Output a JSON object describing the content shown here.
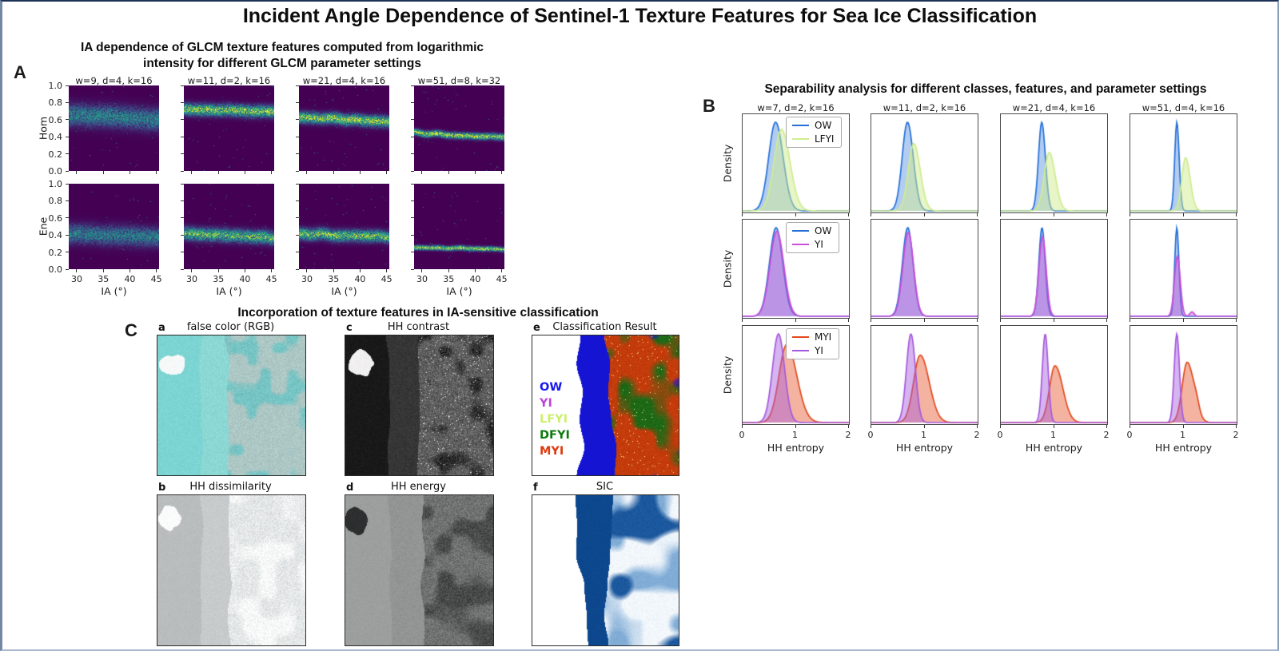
{
  "title": "Incident Angle Dependence of Sentinel-1 Texture Features for Sea Ice Classification",
  "panel_a": {
    "label": "A",
    "title": "IA dependence of GLCM texture features computed from logarithmic\nintensity for different GLCM parameter settings",
    "col_titles": [
      "w=9, d=4, k=16",
      "w=11, d=2, k=16",
      "w=21, d=4, k=16",
      "w=51, d=8, k=32"
    ],
    "row_labels": [
      "Hom",
      "Ene"
    ],
    "xlabel": "IA (°)",
    "xticks": [
      "30",
      "35",
      "40",
      "45"
    ],
    "yticks": [
      "1.0",
      "0.8",
      "0.6",
      "0.4",
      "0.2",
      "0.0"
    ]
  },
  "panel_b": {
    "label": "B",
    "title": "Separability analysis for different classes, features, and parameter settings",
    "col_titles": [
      "w=7, d=2, k=16",
      "w=11, d=2, k=16",
      "w=21, d=4, k=16",
      "w=51, d=4, k=16"
    ],
    "ylabel": "Density",
    "xlabel": "HH entropy",
    "xticks": [
      "0",
      "1",
      "2"
    ]
  },
  "panel_c": {
    "label": "C",
    "title": "Incorporation of texture features in IA-sensitive classification",
    "legend_e": [
      {
        "label": "OW",
        "color": "#1a1aee"
      },
      {
        "label": "YI",
        "color": "#bb44dd"
      },
      {
        "label": "LFYI",
        "color": "#cdef6e"
      },
      {
        "label": "DFYI",
        "color": "#0d7a0d"
      },
      {
        "label": "MYI",
        "color": "#e03a10"
      }
    ]
  },
  "chart_data": {
    "panel_a": {
      "type": "heatmap",
      "title": "IA dependence of GLCM texture features computed from logarithmic intensity for different GLCM parameter settings",
      "columns": [
        "w=9, d=4, k=16",
        "w=11, d=2, k=16",
        "w=21, d=4, k=16",
        "w=51, d=8, k=32"
      ],
      "rows": [
        "Hom",
        "Ene"
      ],
      "xlabel": "IA (°)",
      "xlim": [
        28.5,
        45.5
      ],
      "xticks": [
        30,
        35,
        40,
        45
      ],
      "ylim": [
        0,
        1
      ],
      "yticks": [
        1.0,
        0.8,
        0.6,
        0.4,
        0.2,
        0.0
      ],
      "colormap": "viridis",
      "cells": [
        {
          "row": "Hom",
          "col": "w=9, d=4, k=16",
          "band_center_start": 0.66,
          "band_center_end": 0.61,
          "band_sigma": 0.085,
          "peak": 0.5,
          "wig": 0.012
        },
        {
          "row": "Hom",
          "col": "w=11, d=2, k=16",
          "band_center_start": 0.73,
          "band_center_end": 0.7,
          "band_sigma": 0.045,
          "peak": 0.92,
          "wig": 0.012
        },
        {
          "row": "Hom",
          "col": "w=21, d=4, k=16",
          "band_center_start": 0.64,
          "band_center_end": 0.58,
          "band_sigma": 0.042,
          "peak": 0.95,
          "wig": 0.015
        },
        {
          "row": "Hom",
          "col": "w=51, d=8, k=32",
          "band_center_start": 0.46,
          "band_center_end": 0.4,
          "band_sigma": 0.024,
          "peak": 1.0,
          "wig": 0.022
        },
        {
          "row": "Ene",
          "col": "w=9, d=4, k=16",
          "band_center_start": 0.42,
          "band_center_end": 0.38,
          "band_sigma": 0.075,
          "peak": 0.48,
          "wig": 0.012
        },
        {
          "row": "Ene",
          "col": "w=11, d=2, k=16",
          "band_center_start": 0.42,
          "band_center_end": 0.37,
          "band_sigma": 0.05,
          "peak": 0.8,
          "wig": 0.012
        },
        {
          "row": "Ene",
          "col": "w=21, d=4, k=16",
          "band_center_start": 0.42,
          "band_center_end": 0.38,
          "band_sigma": 0.045,
          "peak": 0.85,
          "wig": 0.015
        },
        {
          "row": "Ene",
          "col": "w=51, d=8, k=32",
          "band_center_start": 0.265,
          "band_center_end": 0.235,
          "band_sigma": 0.018,
          "peak": 1.0,
          "wig": 0.022
        }
      ]
    },
    "panel_b": {
      "type": "density",
      "title": "Separability analysis for different classes, features, and parameter settings",
      "columns": [
        "w=7, d=2, k=16",
        "w=11, d=2, k=16",
        "w=21, d=4, k=16",
        "w=51, d=4, k=16"
      ],
      "xlabel": "HH entropy",
      "xlim": [
        0,
        2
      ],
      "xticks": [
        0,
        1,
        2
      ],
      "ylabel": "Density",
      "rows": [
        {
          "classes": [
            "OW",
            "LFYI"
          ],
          "colors": [
            "#2470d8",
            "#cfec90"
          ],
          "alphas": [
            0.35,
            0.5
          ]
        },
        {
          "classes": [
            "OW",
            "YI"
          ],
          "colors": [
            "#2470d8",
            "#c84fd8"
          ],
          "alphas": [
            0.35,
            0.45
          ]
        },
        {
          "classes": [
            "MYI",
            "YI"
          ],
          "colors": [
            "#e2491c",
            "#a558dd"
          ],
          "alphas": [
            0.42,
            0.45
          ]
        }
      ],
      "cells": [
        {
          "row": 0,
          "col": 0,
          "curves": [
            {
              "m": 0.62,
              "s": 0.13,
              "a": 1.0,
              "skew": 1.1
            },
            {
              "m": 0.73,
              "s": 0.14,
              "a": 0.92,
              "skew": 1.15
            }
          ]
        },
        {
          "row": 0,
          "col": 1,
          "curves": [
            {
              "m": 0.68,
              "s": 0.1,
              "a": 1.0,
              "skew": 1.1
            },
            {
              "m": 0.8,
              "s": 0.105,
              "a": 0.76,
              "skew": 1.15
            }
          ]
        },
        {
          "row": 0,
          "col": 2,
          "curves": [
            {
              "m": 0.77,
              "s": 0.062,
              "a": 1.0,
              "skew": 1.1
            },
            {
              "m": 0.91,
              "s": 0.095,
              "a": 0.66,
              "skew": 1.2
            }
          ]
        },
        {
          "row": 0,
          "col": 3,
          "curves": [
            {
              "m": 0.875,
              "s": 0.04,
              "a": 1.0,
              "skew": 1.1
            },
            {
              "m": 1.04,
              "s": 0.072,
              "a": 0.6,
              "skew": 1.2
            }
          ]
        },
        {
          "row": 1,
          "col": 0,
          "curves": [
            {
              "m": 0.63,
              "s": 0.125,
              "a": 1.0
            },
            {
              "m": 0.645,
              "s": 0.13,
              "a": 0.96
            }
          ]
        },
        {
          "row": 1,
          "col": 1,
          "curves": [
            {
              "m": 0.685,
              "s": 0.1,
              "a": 1.0
            },
            {
              "m": 0.695,
              "s": 0.1,
              "a": 0.95
            }
          ]
        },
        {
          "row": 1,
          "col": 2,
          "curves": [
            {
              "m": 0.775,
              "s": 0.06,
              "a": 1.0
            },
            {
              "m": 0.785,
              "s": 0.068,
              "a": 0.9
            }
          ]
        },
        {
          "row": 1,
          "col": 3,
          "curves": [
            {
              "m": 0.875,
              "s": 0.04,
              "a": 1.0
            },
            {
              "m": 0.885,
              "s": 0.055,
              "a": 0.68,
              "bump": {
                "m": 1.16,
                "s": 0.04,
                "a": 0.05
              }
            }
          ]
        },
        {
          "row": 2,
          "col": 0,
          "curves": [
            {
              "m": 0.83,
              "s": 0.145,
              "a": 0.88,
              "skew": 1.3
            },
            {
              "m": 0.675,
              "s": 0.115,
              "a": 1.0
            }
          ]
        },
        {
          "row": 2,
          "col": 1,
          "curves": [
            {
              "m": 0.92,
              "s": 0.125,
              "a": 0.76,
              "skew": 1.35
            },
            {
              "m": 0.745,
              "s": 0.085,
              "a": 1.0
            }
          ]
        },
        {
          "row": 2,
          "col": 2,
          "curves": [
            {
              "m": 1.02,
              "s": 0.105,
              "a": 0.64,
              "skew": 1.4
            },
            {
              "m": 0.835,
              "s": 0.055,
              "a": 1.0
            }
          ]
        },
        {
          "row": 2,
          "col": 3,
          "curves": [
            {
              "m": 1.07,
              "s": 0.095,
              "a": 0.68,
              "skew": 1.35,
              "bump": {
                "m": 1.25,
                "s": 0.05,
                "a": 0.07
              }
            },
            {
              "m": 0.875,
              "s": 0.05,
              "a": 1.0
            }
          ]
        }
      ]
    },
    "panel_c": {
      "type": "image-grid",
      "title": "Incorporation of texture features in IA-sensitive classification",
      "images": [
        {
          "letter": "a",
          "title": "false color (RGB)",
          "render": {
            "seed": 11,
            "edge": 0.025,
            "bands": [
              {
                "x": 0,
                "c": [
                  125,
                  213,
                  211
                ],
                "n": 7
              },
              {
                "x": 0.295,
                "c": [
                  139,
                  216,
                  212
                ],
                "n": 9
              },
              {
                "x": 0.47,
                "c": [
                  173,
                  199,
                  197
                ],
                "n": 13,
                "mc": [
                  118,
                  196,
                  196
                ],
                "mt": 0.54,
                "ms": 11
              }
            ],
            "blob": {
              "x": 0.1,
              "y": 0.21,
              "rx": 0.085,
              "ry": 0.075,
              "c": [
                246,
                249,
                249
              ]
            }
          }
        },
        {
          "letter": "c",
          "title": "HH contrast",
          "render": {
            "seed": 23,
            "edge": 0.02,
            "bands": [
              {
                "x": 0,
                "c": [
                  25,
                  25,
                  25
                ],
                "n": 6
              },
              {
                "x": 0.29,
                "c": [
                  54,
                  54,
                  54
                ],
                "n": 10
              },
              {
                "x": 0.5,
                "c": [
                  95,
                  95,
                  95
                ],
                "n": 32,
                "mc": [
                  45,
                  45,
                  45
                ],
                "mt": 0.6,
                "ms": 9,
                "sp": 0.02,
                "sc": [
                  235,
                  235,
                  235
                ]
              }
            ],
            "blob": {
              "x": 0.1,
              "y": 0.2,
              "rx": 0.08,
              "ry": 0.09,
              "c": [
                240,
                240,
                240
              ]
            }
          }
        },
        {
          "letter": "e",
          "title": "Classification Result",
          "render": {
            "seed": 37,
            "edge": 0.05,
            "bands": [
              {
                "x": 0,
                "c": [
                  255,
                  255,
                  255
                ],
                "n": 0
              },
              {
                "x": 0.335,
                "c": [
                  20,
                  20,
                  210
                ],
                "n": 0
              },
              {
                "x": 0.53,
                "c": [
                  196,
                  60,
                  12
                ],
                "n": 9,
                "mc": [
                  30,
                  105,
                  22
                ],
                "mt": 0.56,
                "ms": 8,
                "mc2": [
                  20,
                  20,
                  210
                ],
                "mt2": 0.78,
                "ms2": 6,
                "sp": 0.012,
                "sc": [
                  244,
                  244,
                  140
                ]
              }
            ]
          }
        },
        {
          "letter": "b",
          "title": "HH dissimilarity",
          "render": {
            "seed": 53,
            "edge": 0.02,
            "bands": [
              {
                "x": 0,
                "c": [
                  185,
                  189,
                  189
                ],
                "n": 5
              },
              {
                "x": 0.295,
                "c": [
                  199,
                  203,
                  203
                ],
                "n": 7
              },
              {
                "x": 0.49,
                "c": [
                  228,
                  231,
                  231
                ],
                "n": 18,
                "mc": [
                  248,
                  250,
                  250
                ],
                "mt": 0.5,
                "ms": 8
              }
            ],
            "blob": {
              "x": 0.08,
              "y": 0.15,
              "rx": 0.07,
              "ry": 0.08,
              "c": [
                250,
                252,
                252
              ]
            }
          }
        },
        {
          "letter": "d",
          "title": "HH energy",
          "render": {
            "seed": 67,
            "edge": 0.02,
            "bands": [
              {
                "x": 0,
                "c": [
                  157,
                  159,
                  159
                ],
                "n": 5
              },
              {
                "x": 0.3,
                "c": [
                  147,
                  149,
                  149
                ],
                "n": 8
              },
              {
                "x": 0.52,
                "c": [
                  112,
                  114,
                  114
                ],
                "n": 24,
                "mc": [
                  72,
                  74,
                  74
                ],
                "mt": 0.57,
                "ms": 9
              }
            ],
            "blob": {
              "x": 0.07,
              "y": 0.17,
              "rx": 0.07,
              "ry": 0.09,
              "c": [
                45,
                47,
                47
              ]
            }
          }
        },
        {
          "letter": "f",
          "title": "SIC",
          "render": {
            "seed": 79,
            "edge": 0.06,
            "bands": [
              {
                "x": 0,
                "c": [
                  255,
                  255,
                  255
                ],
                "n": 0
              },
              {
                "x": 0.335,
                "c": [
                  13,
                  72,
                  142
                ],
                "n": 3
              },
              {
                "x": 0.53,
                "c": [
                  242,
                  247,
                  252
                ],
                "n": 7,
                "mc": [
                  128,
                  172,
                  214
                ],
                "mt": 0.44,
                "ms": 7,
                "mc2": [
                  28,
                  88,
                  158
                ],
                "mt2": 0.73,
                "ms2": 5
              }
            ]
          }
        }
      ]
    }
  }
}
